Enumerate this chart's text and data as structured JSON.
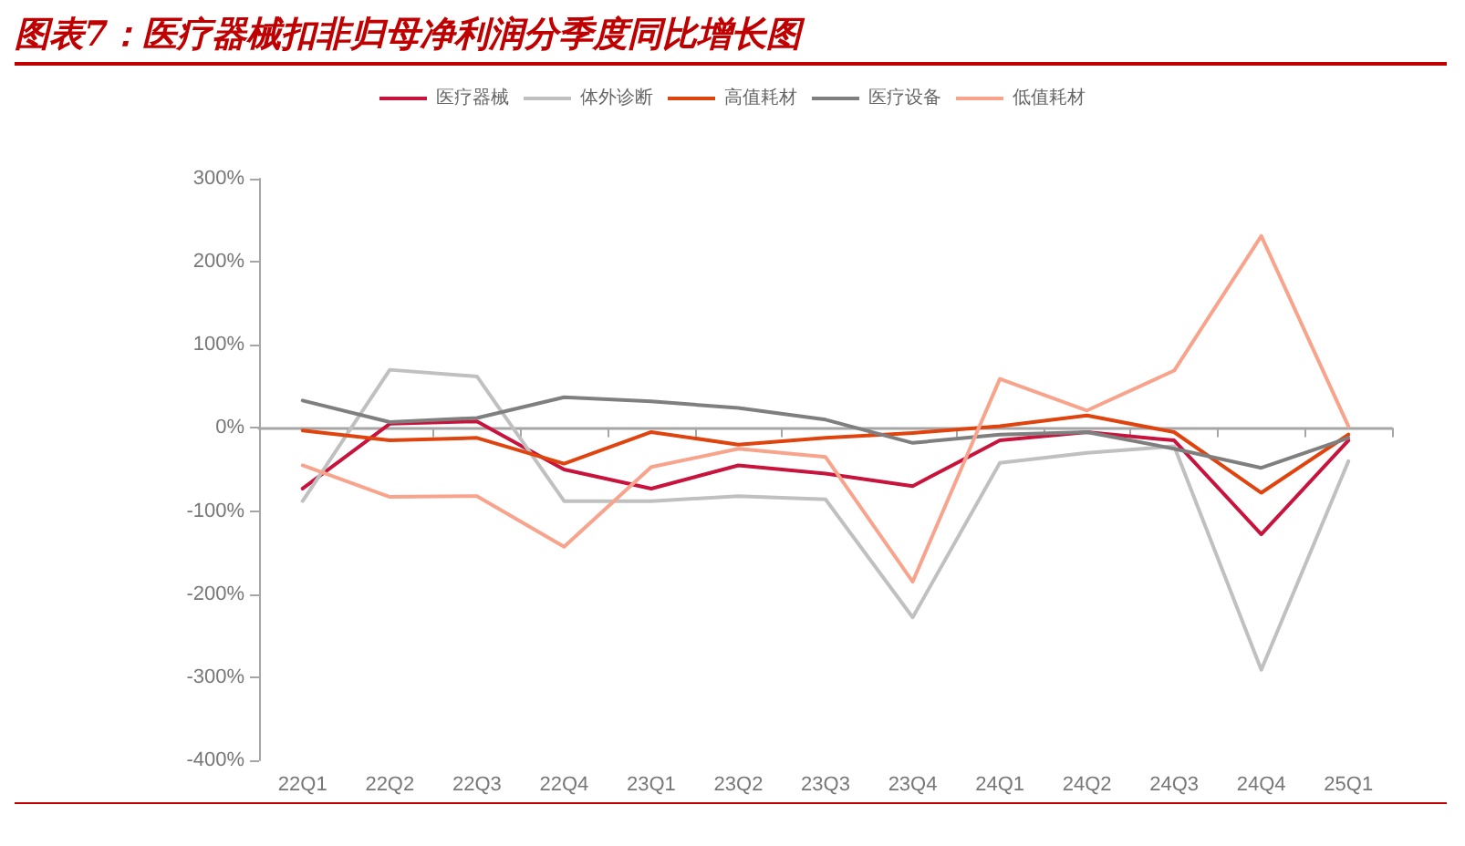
{
  "chart_data": {
    "type": "line",
    "title": "图表7：医疗器械扣非归母净利润分季度同比增长图",
    "categories": [
      "22Q1",
      "22Q2",
      "22Q3",
      "22Q4",
      "23Q1",
      "23Q2",
      "23Q3",
      "23Q4",
      "24Q1",
      "24Q2",
      "24Q3",
      "24Q4",
      "25Q1"
    ],
    "series": [
      {
        "name": "医疗器械",
        "color": "#c8143c",
        "values": [
          -73,
          5,
          8,
          -50,
          -73,
          -45,
          -55,
          -70,
          -15,
          -5,
          -15,
          -128,
          -15
        ]
      },
      {
        "name": "体外诊断",
        "color": "#c0c0c0",
        "values": [
          -88,
          70,
          62,
          -88,
          -88,
          -82,
          -86,
          -228,
          -42,
          -30,
          -22,
          -291,
          -40
        ]
      },
      {
        "name": "高值耗材",
        "color": "#e0440e",
        "values": [
          -3,
          -15,
          -12,
          -43,
          -5,
          -20,
          -12,
          -6,
          2,
          15,
          -5,
          -78,
          -8
        ]
      },
      {
        "name": "医疗设备",
        "color": "#7f7f7f",
        "values": [
          33,
          7,
          12,
          37,
          32,
          24,
          10,
          -18,
          -8,
          -5,
          -25,
          -48,
          -12
        ]
      },
      {
        "name": "低值耗材",
        "color": "#f8a48c",
        "values": [
          -45,
          -83,
          -82,
          -143,
          -47,
          -25,
          -35,
          -185,
          59,
          21,
          69,
          231,
          2
        ]
      }
    ],
    "ylim": [
      -400,
      300
    ],
    "yticks": [
      {
        "value": -400,
        "label": "-400%"
      },
      {
        "value": -300,
        "label": "-300%"
      },
      {
        "value": -200,
        "label": "-200%"
      },
      {
        "value": -100,
        "label": "-100%"
      },
      {
        "value": 0,
        "label": "0%"
      },
      {
        "value": 100,
        "label": "100%"
      },
      {
        "value": 200,
        "label": "200%"
      },
      {
        "value": 300,
        "label": "300%"
      }
    ],
    "legend": "top",
    "marker": "none",
    "line_style": "solid"
  }
}
